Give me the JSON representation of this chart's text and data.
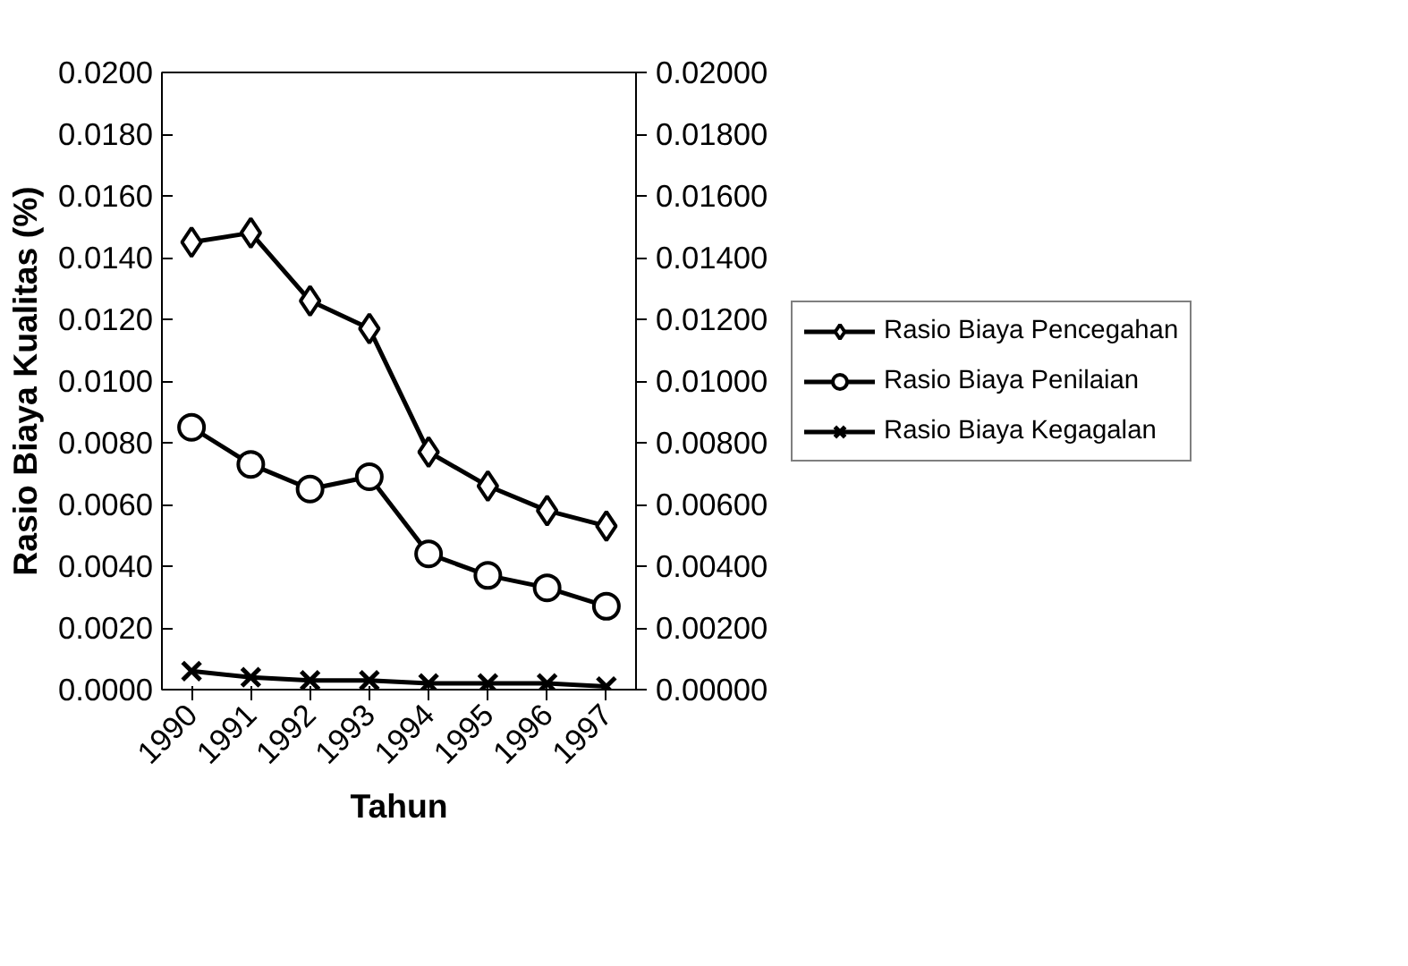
{
  "chart_data": {
    "type": "line",
    "xlabel": "Tahun",
    "ylabel": "Rasio Biaya Kualitas (%)",
    "categories": [
      "1990",
      "1991",
      "1992",
      "1993",
      "1994",
      "1995",
      "1996",
      "1997"
    ],
    "series": [
      {
        "name": "Rasio Biaya Pencegahan",
        "color": "#000000",
        "marker": "diamond",
        "values": [
          0.0145,
          0.0148,
          0.0126,
          0.0117,
          0.0077,
          0.0066,
          0.0058,
          0.0053
        ]
      },
      {
        "name": "Rasio Biaya Penilaian",
        "color": "#000000",
        "marker": "circle",
        "values": [
          0.0085,
          0.0073,
          0.0065,
          0.0069,
          0.0044,
          0.0037,
          0.0033,
          0.0027
        ]
      },
      {
        "name": "Rasio Biaya Kegagalan",
        "color": "#000000",
        "marker": "cross",
        "values": [
          0.0006,
          0.0004,
          0.0003,
          0.0003,
          0.0002,
          0.0002,
          0.0002,
          0.0001
        ]
      }
    ],
    "ylim": [
      0,
      0.02
    ],
    "yticks": [
      {
        "value": 0,
        "label": "0.0000"
      },
      {
        "value": 0.002,
        "label": "0.0020"
      },
      {
        "value": 0.004,
        "label": "0.0040"
      },
      {
        "value": 0.006,
        "label": "0.0060"
      },
      {
        "value": 0.008,
        "label": "0.0080"
      },
      {
        "value": 0.01,
        "label": "0.0100"
      },
      {
        "value": 0.012,
        "label": "0.0120"
      },
      {
        "value": 0.014,
        "label": "0.0140"
      },
      {
        "value": 0.016,
        "label": "0.0160"
      },
      {
        "value": 0.018,
        "label": "0.0180"
      },
      {
        "value": 0.02,
        "label": "0.0200"
      }
    ],
    "y2lim": [
      0,
      0.02
    ],
    "y2ticks": [
      {
        "value": 0,
        "label": "0.00000"
      },
      {
        "value": 0.002,
        "label": "0.00200"
      },
      {
        "value": 0.004,
        "label": "0.00400"
      },
      {
        "value": 0.006,
        "label": "0.00600"
      },
      {
        "value": 0.008,
        "label": "0.00800"
      },
      {
        "value": 0.01,
        "label": "0.01000"
      },
      {
        "value": 0.012,
        "label": "0.01200"
      },
      {
        "value": 0.014,
        "label": "0.01400"
      },
      {
        "value": 0.016,
        "label": "0.01600"
      },
      {
        "value": 0.018,
        "label": "0.01800"
      },
      {
        "value": 0.02,
        "label": "0.02000"
      }
    ],
    "grid": false,
    "legend": "right",
    "line_style": "solid"
  }
}
